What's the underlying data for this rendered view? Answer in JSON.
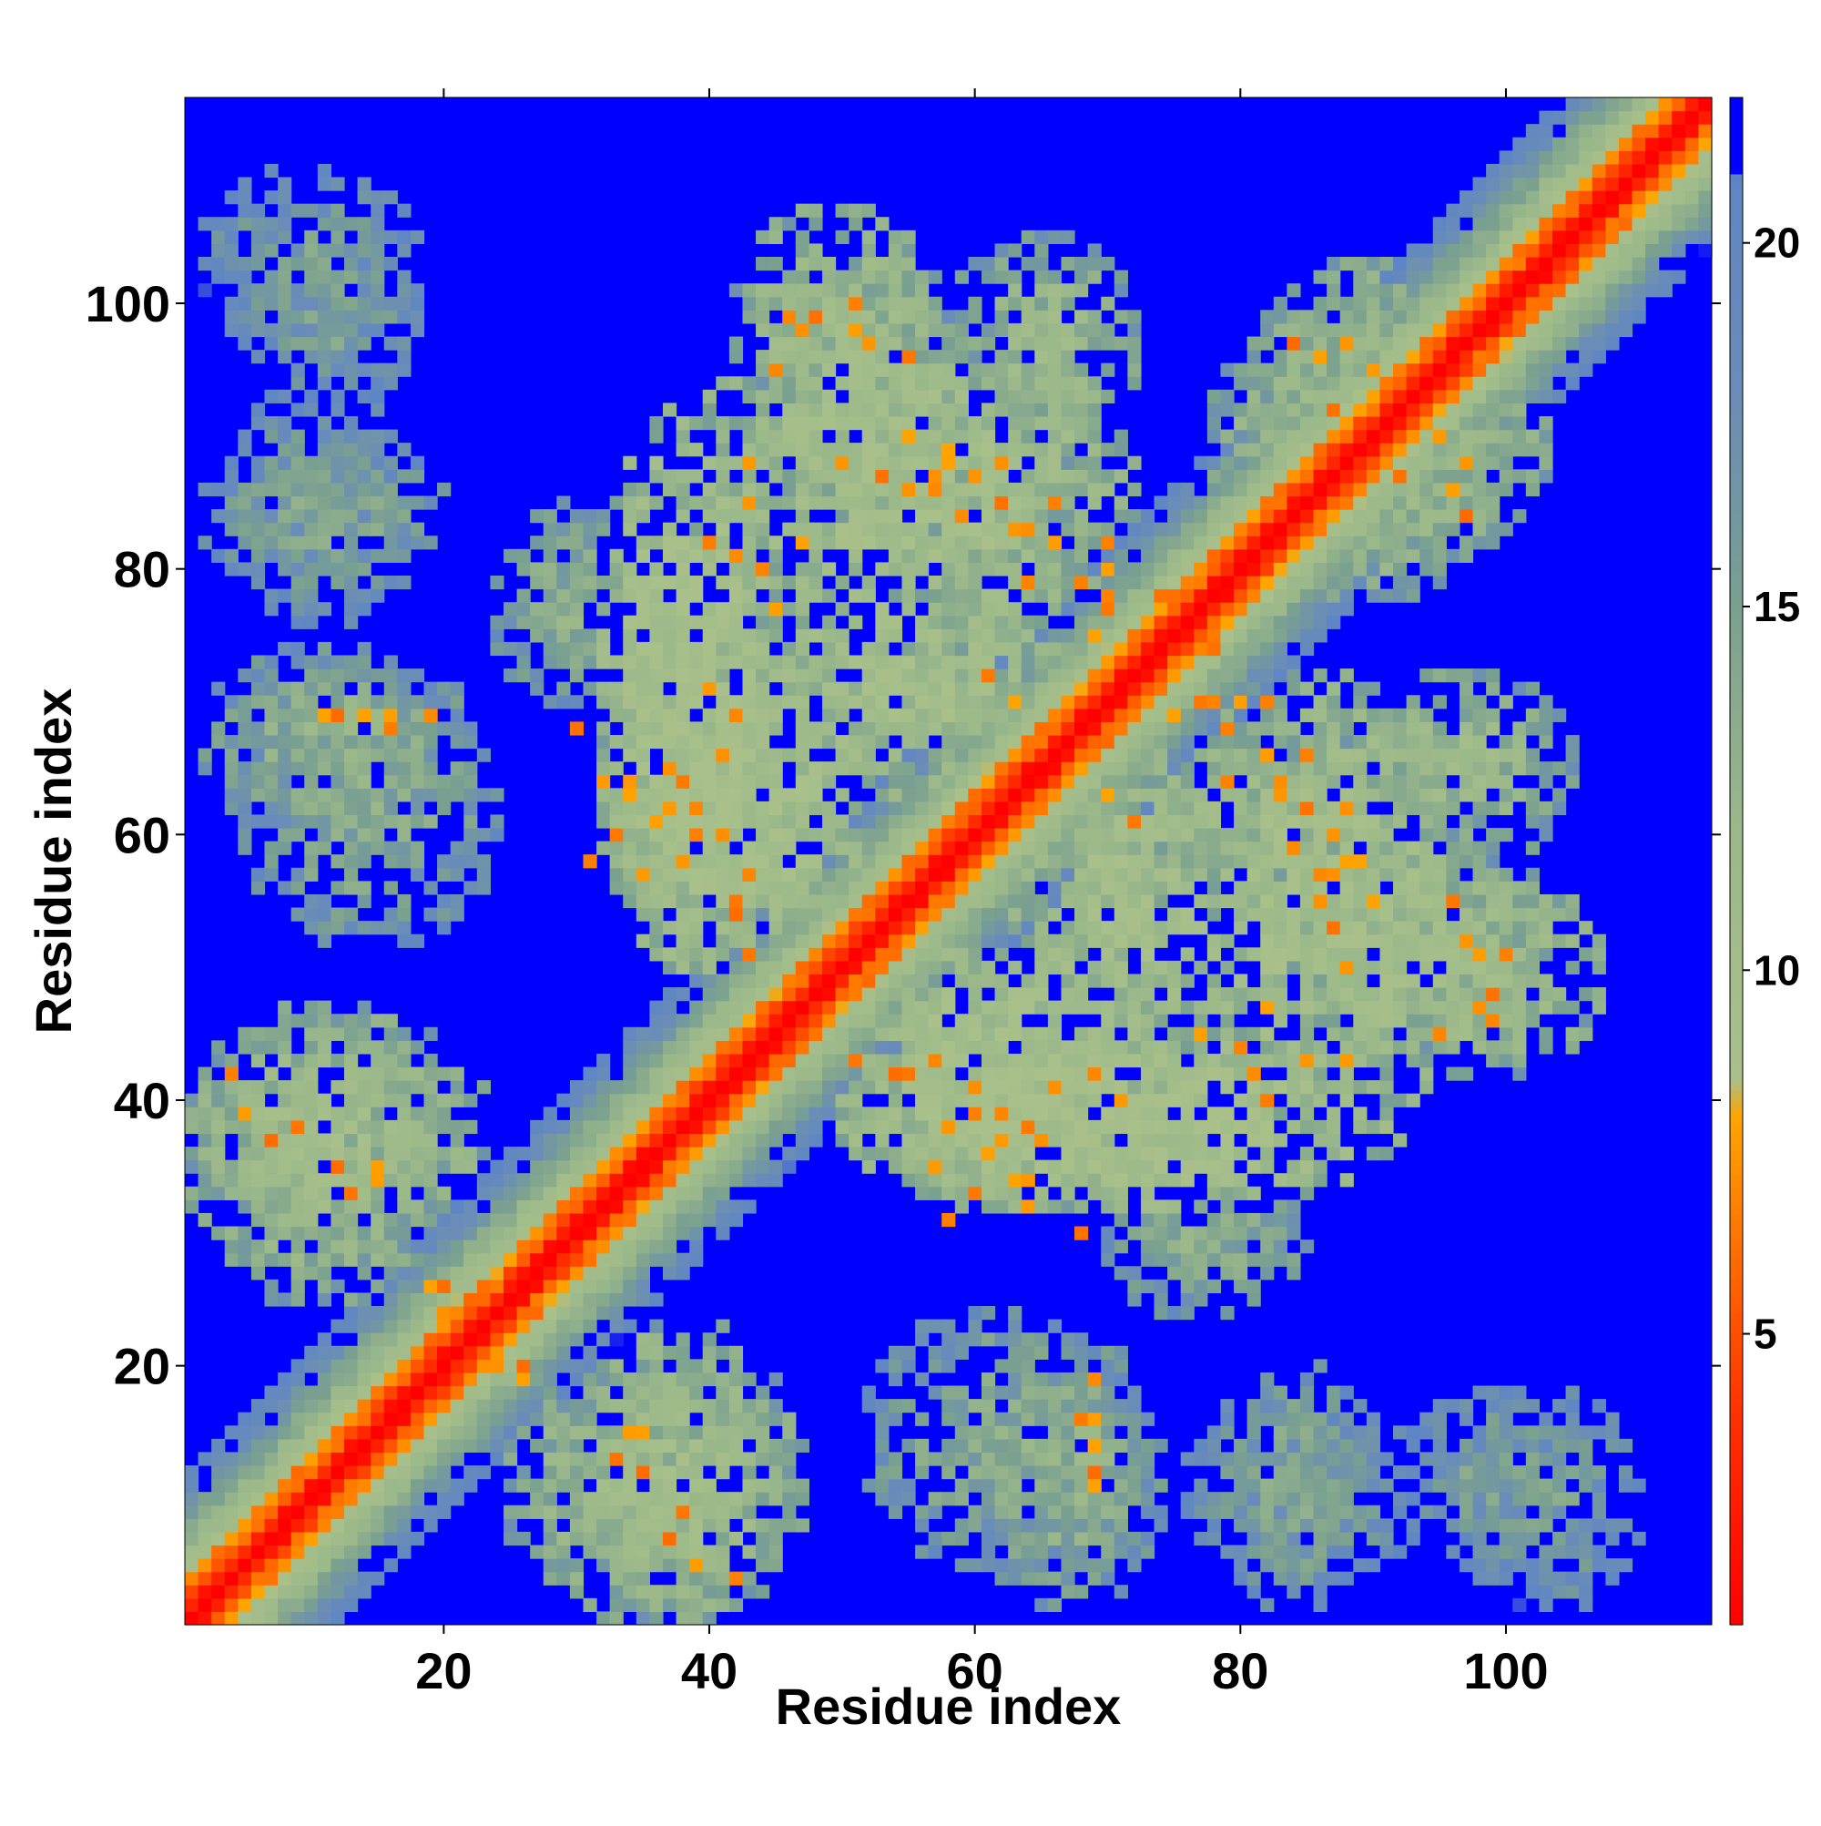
{
  "chart_data": {
    "type": "heatmap",
    "title": "",
    "xlabel": "Residue index",
    "ylabel": "Residue index",
    "n_residues": 115,
    "xlim": [
      1,
      115
    ],
    "ylim": [
      1,
      115
    ],
    "x_ticks": [
      "20",
      "40",
      "60",
      "80",
      "100"
    ],
    "y_ticks": [
      "20",
      "40",
      "60",
      "80",
      "100"
    ],
    "x_tick_values": [
      20,
      40,
      60,
      80,
      100
    ],
    "y_tick_values": [
      20,
      40,
      60,
      80,
      100
    ],
    "value_description": "pairwise residue distance (contact map); values at or above 21 shown as background",
    "colorbar": {
      "ticks": [
        "5",
        "10",
        "15",
        "20"
      ],
      "tick_values": [
        5,
        10,
        15,
        20
      ],
      "range": [
        1,
        22
      ],
      "stops": [
        {
          "value": 1,
          "color": "#ff0000"
        },
        {
          "value": 4,
          "color": "#ff3300"
        },
        {
          "value": 6,
          "color": "#ff6a00"
        },
        {
          "value": 8,
          "color": "#ffa500"
        },
        {
          "value": 8.5,
          "color": "#a9c08a"
        },
        {
          "value": 12,
          "color": "#9bb88a"
        },
        {
          "value": 15,
          "color": "#7aa090"
        },
        {
          "value": 18,
          "color": "#6a8cb8"
        },
        {
          "value": 20.9,
          "color": "#5f86c4"
        },
        {
          "value": 21,
          "color": "#0000ff"
        },
        {
          "value": 22,
          "color": "#0000ff"
        }
      ]
    },
    "cutoff": 21,
    "diagonal_profile": [
      {
        "offset": 0,
        "value": 1
      },
      {
        "offset": 1,
        "value": 2.5
      },
      {
        "offset": 2,
        "value": 5.5
      },
      {
        "offset": 3,
        "value": 7
      },
      {
        "offset": 4,
        "value": 9.5
      },
      {
        "offset": 5,
        "value": 11
      },
      {
        "offset": 6,
        "value": 12.5
      },
      {
        "offset": 7,
        "value": 14
      },
      {
        "offset": 8,
        "value": 15.5
      },
      {
        "offset": 9,
        "value": 17
      },
      {
        "offset": 10,
        "value": 18.5
      },
      {
        "offset": 11,
        "value": 20
      }
    ],
    "contact_regions": [
      {
        "x": [
          2,
          22
        ],
        "y": [
          60,
          74
        ],
        "level": 17.5
      },
      {
        "x": [
          2,
          20
        ],
        "y": [
          78,
          90
        ],
        "level": 18.5
      },
      {
        "x": [
          5,
          18
        ],
        "y": [
          93,
          104
        ],
        "level": 19.5
      },
      {
        "x": [
          1,
          23
        ],
        "y": [
          30,
          46
        ],
        "level": 15
      },
      {
        "x": [
          25,
          47
        ],
        "y": [
          1,
          20
        ],
        "level": 15.5
      },
      {
        "x": [
          32,
          45
        ],
        "y": [
          50,
          92
        ],
        "level": 13
      },
      {
        "x": [
          44,
          60
        ],
        "y": [
          82,
          103
        ],
        "level": 15
      },
      {
        "x": [
          54,
          68
        ],
        "y": [
          66,
          98
        ],
        "level": 16
      },
      {
        "x": [
          50,
          75
        ],
        "y": [
          32,
          52
        ],
        "level": 13.5
      },
      {
        "x": [
          52,
          72
        ],
        "y": [
          5,
          24
        ],
        "level": 18
      },
      {
        "x": [
          62,
          82
        ],
        "y": [
          42,
          68
        ],
        "level": 14.5
      },
      {
        "x": [
          75,
          98
        ],
        "y": [
          38,
          72
        ],
        "level": 14
      },
      {
        "x": [
          90,
          107
        ],
        "y": [
          42,
          57
        ],
        "level": 15
      },
      {
        "x": [
          80,
          100
        ],
        "y": [
          78,
          103
        ],
        "level": 15.5
      },
      {
        "x": [
          76,
          94
        ],
        "y": [
          4,
          18
        ],
        "level": 19.5
      },
      {
        "x": [
          96,
          110
        ],
        "y": [
          2,
          18
        ],
        "level": 19.5
      },
      {
        "x": [
          24,
          34
        ],
        "y": [
          70,
          85
        ],
        "level": 17.5
      },
      {
        "x": [
          88,
          105
        ],
        "y": [
          58,
          72
        ],
        "level": 16
      }
    ],
    "close_contacts": [
      [
        12,
        69
      ],
      [
        14,
        69
      ],
      [
        16,
        69
      ],
      [
        4,
        42
      ],
      [
        9,
        38
      ],
      [
        12,
        35
      ],
      [
        15,
        34
      ],
      [
        19,
        26
      ],
      [
        20,
        24
      ],
      [
        24,
        20
      ],
      [
        26,
        20
      ],
      [
        35,
        15
      ],
      [
        33,
        13
      ],
      [
        37,
        7
      ],
      [
        39,
        5
      ],
      [
        32,
        64
      ],
      [
        34,
        64
      ],
      [
        35,
        57
      ],
      [
        36,
        61
      ],
      [
        38,
        58
      ],
      [
        39,
        62
      ],
      [
        41,
        60
      ],
      [
        41,
        66
      ],
      [
        42,
        55
      ],
      [
        43,
        88
      ],
      [
        42,
        81
      ],
      [
        40,
        82
      ],
      [
        45,
        95
      ],
      [
        46,
        99
      ],
      [
        48,
        99
      ],
      [
        51,
        98
      ],
      [
        53,
        87
      ],
      [
        55,
        86
      ],
      [
        57,
        87
      ],
      [
        59,
        84
      ],
      [
        62,
        88
      ],
      [
        63,
        83
      ],
      [
        64,
        79
      ],
      [
        66,
        85
      ],
      [
        68,
        79
      ],
      [
        70,
        82
      ],
      [
        70,
        77
      ],
      [
        74,
        78
      ],
      [
        70,
        63
      ],
      [
        72,
        61
      ],
      [
        50,
        48
      ],
      [
        51,
        43
      ],
      [
        54,
        42
      ],
      [
        57,
        43
      ],
      [
        60,
        39
      ],
      [
        62,
        37
      ],
      [
        64,
        38
      ],
      [
        66,
        41
      ],
      [
        69,
        42
      ],
      [
        71,
        40
      ],
      [
        63,
        34
      ],
      [
        65,
        37
      ],
      [
        68,
        30
      ],
      [
        58,
        31
      ],
      [
        60,
        33
      ],
      [
        75,
        69
      ],
      [
        78,
        70
      ],
      [
        80,
        70
      ],
      [
        83,
        64
      ],
      [
        85,
        62
      ],
      [
        82,
        66
      ],
      [
        87,
        60
      ],
      [
        88,
        58
      ],
      [
        77,
        45
      ],
      [
        80,
        44
      ],
      [
        82,
        47
      ],
      [
        85,
        43
      ],
      [
        88,
        50
      ],
      [
        90,
        55
      ],
      [
        96,
        55
      ],
      [
        97,
        52
      ],
      [
        98,
        47
      ],
      [
        99,
        48
      ],
      [
        100,
        51
      ],
      [
        89,
        58
      ],
      [
        86,
        57
      ],
      [
        88,
        97
      ],
      [
        90,
        95
      ],
      [
        94,
        96
      ],
      [
        96,
        99
      ],
      [
        98,
        98
      ],
      [
        92,
        87
      ],
      [
        93,
        92
      ],
      [
        96,
        86
      ],
      [
        97,
        84
      ],
      [
        69,
        11
      ],
      [
        68,
        16
      ],
      [
        69,
        19
      ]
    ]
  }
}
